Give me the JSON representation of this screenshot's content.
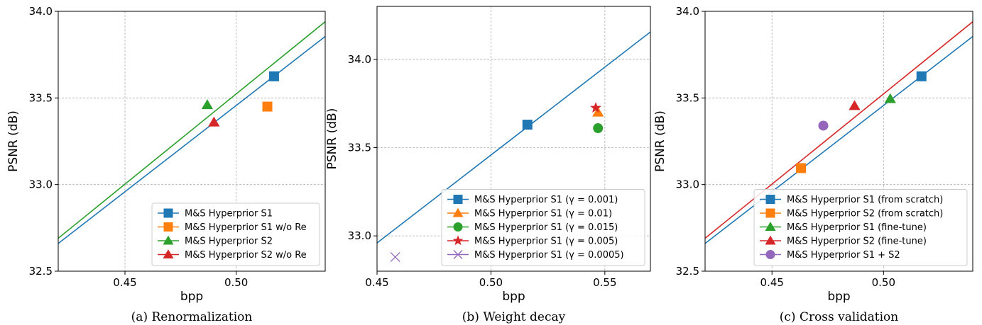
{
  "colors": {
    "blue": "#1f77b4",
    "orange": "#ff7f0e",
    "green": "#2ca02c",
    "red": "#d62728",
    "purple": "#9467bd",
    "grid": "#b0b0b0"
  },
  "chart_data": [
    {
      "type": "scatter",
      "caption": "(a) Renormalization",
      "xlabel": "bpp",
      "ylabel": "PSNR (dB)",
      "xlim": [
        0.42,
        0.54
      ],
      "ylim": [
        32.5,
        34.0
      ],
      "xticks": [
        0.45,
        0.5
      ],
      "xtick_labels": [
        "0.45",
        "0.50"
      ],
      "yticks": [
        32.5,
        33.0,
        33.5,
        34.0
      ],
      "ytick_labels": [
        "32.5",
        "33.0",
        "33.5",
        "34.0"
      ],
      "grid": true,
      "legend_position": "lower-right",
      "lines": [
        {
          "color": "blue",
          "x": [
            0.42,
            0.54
          ],
          "y": [
            32.66,
            33.855
          ]
        },
        {
          "color": "green",
          "x": [
            0.42,
            0.54
          ],
          "y": [
            32.69,
            33.94
          ]
        }
      ],
      "series": [
        {
          "name": "M&S Hyperprior S1",
          "marker": "square",
          "color": "blue",
          "x": 0.517,
          "y": 33.625
        },
        {
          "name": "M&S Hyperprior S1 w/o Re",
          "marker": "square",
          "color": "orange",
          "x": 0.514,
          "y": 33.45
        },
        {
          "name": "M&S Hyperprior S2",
          "marker": "triangle",
          "color": "green",
          "x": 0.487,
          "y": 33.46
        },
        {
          "name": "M&S Hyperprior S2 w/o Re",
          "marker": "triangle",
          "color": "red",
          "x": 0.49,
          "y": 33.36
        }
      ]
    },
    {
      "type": "scatter",
      "caption": "(b) Weight decay",
      "xlabel": "bpp",
      "ylabel": "PSNR (dB)",
      "xlim": [
        0.45,
        0.57
      ],
      "ylim": [
        32.8,
        34.3
      ],
      "xticks": [
        0.45,
        0.5,
        0.55
      ],
      "xtick_labels": [
        "0.45",
        "0.50",
        "0.55"
      ],
      "yticks": [
        33.0,
        33.5,
        34.0
      ],
      "ytick_labels": [
        "33.0",
        "33.5",
        "34.0"
      ],
      "grid": true,
      "legend_position": "lower-right",
      "lines": [
        {
          "color": "blue",
          "x": [
            0.45,
            0.57
          ],
          "y": [
            32.96,
            34.155
          ]
        }
      ],
      "series": [
        {
          "name": "M&S Hyperprior S1 (γ = 0.001)",
          "marker": "square",
          "color": "blue",
          "x": 0.516,
          "y": 33.63
        },
        {
          "name": "M&S Hyperprior S1 (γ = 0.01)",
          "marker": "triangle",
          "color": "orange",
          "x": 0.547,
          "y": 33.7
        },
        {
          "name": "M&S Hyperprior S1 (γ = 0.015)",
          "marker": "circle",
          "color": "green",
          "x": 0.547,
          "y": 33.61
        },
        {
          "name": "M&S Hyperprior S1 (γ = 0.005)",
          "marker": "star",
          "color": "red",
          "x": 0.546,
          "y": 33.725
        },
        {
          "name": "M&S Hyperprior S1 (γ = 0.0005)",
          "marker": "x",
          "color": "purple",
          "x": 0.458,
          "y": 32.88
        }
      ]
    },
    {
      "type": "scatter",
      "caption": "(c) Cross validation",
      "xlabel": "bpp",
      "ylabel": "PSNR (dB)",
      "xlim": [
        0.42,
        0.54
      ],
      "ylim": [
        32.5,
        34.0
      ],
      "xticks": [
        0.45,
        0.5
      ],
      "xtick_labels": [
        "0.45",
        "0.50"
      ],
      "yticks": [
        32.5,
        33.0,
        33.5,
        34.0
      ],
      "ytick_labels": [
        "32.5",
        "33.0",
        "33.5",
        "34.0"
      ],
      "grid": true,
      "legend_position": "lower-right",
      "lines": [
        {
          "color": "blue",
          "x": [
            0.42,
            0.54
          ],
          "y": [
            32.66,
            33.855
          ]
        },
        {
          "color": "red",
          "x": [
            0.42,
            0.54
          ],
          "y": [
            32.69,
            33.94
          ]
        }
      ],
      "series": [
        {
          "name": "M&S Hyperprior S1 (from scratch)",
          "marker": "square",
          "color": "blue",
          "x": 0.517,
          "y": 33.625
        },
        {
          "name": "M&S Hyperprior S2 (from scratch)",
          "marker": "square",
          "color": "orange",
          "x": 0.463,
          "y": 33.095
        },
        {
          "name": "M&S Hyperprior S1 (fine-tune)",
          "marker": "triangle",
          "color": "green",
          "x": 0.503,
          "y": 33.495
        },
        {
          "name": "M&S Hyperprior S2 (fine-tune)",
          "marker": "triangle",
          "color": "red",
          "x": 0.487,
          "y": 33.455
        },
        {
          "name": "M&S Hyperprior S1 + S2",
          "marker": "circle",
          "color": "purple",
          "x": 0.473,
          "y": 33.34
        }
      ]
    }
  ]
}
